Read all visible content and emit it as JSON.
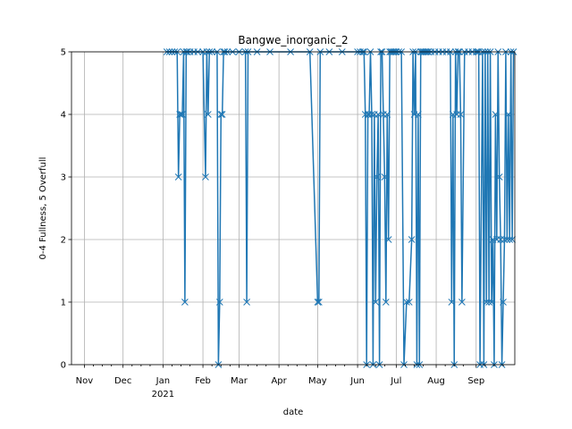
{
  "chart_data": {
    "type": "line",
    "title": "Bangwe_inorganic_2",
    "xlabel": "date",
    "ylabel": "0-4 Fullness, 5 Overfull",
    "ylim": [
      0,
      5
    ],
    "xlim": [
      "2020-10-22",
      "2021-10-01"
    ],
    "yticks": [
      0,
      1,
      2,
      3,
      4,
      5
    ],
    "xticks": [
      {
        "date": "2020-11-01",
        "label": "Nov"
      },
      {
        "date": "2020-12-01",
        "label": "Dec"
      },
      {
        "date": "2021-01-01",
        "label": "Jan",
        "sublabel": "2021"
      },
      {
        "date": "2021-02-01",
        "label": "Feb"
      },
      {
        "date": "2021-03-01",
        "label": "Mar"
      },
      {
        "date": "2021-04-01",
        "label": "Apr"
      },
      {
        "date": "2021-05-01",
        "label": "May"
      },
      {
        "date": "2021-06-01",
        "label": "Jun"
      },
      {
        "date": "2021-07-01",
        "label": "Jul"
      },
      {
        "date": "2021-08-01",
        "label": "Aug"
      },
      {
        "date": "2021-09-01",
        "label": "Sep"
      }
    ],
    "grid": true,
    "marker": "x",
    "color": "#1f77b4",
    "series": [
      {
        "x": [
          "2021-01-04",
          "2021-01-06",
          "2021-01-08",
          "2021-01-10",
          "2021-01-12",
          "2021-01-13",
          "2021-01-14",
          "2021-01-15",
          "2021-01-16",
          "2021-01-17",
          "2021-01-18",
          "2021-01-19",
          "2021-01-20",
          "2021-01-22",
          "2021-01-25",
          "2021-01-28",
          "2021-02-01",
          "2021-02-03",
          "2021-02-04",
          "2021-02-05",
          "2021-02-06",
          "2021-02-08",
          "2021-02-12",
          "2021-02-13",
          "2021-02-14",
          "2021-02-15",
          "2021-02-16",
          "2021-02-17",
          "2021-02-18",
          "2021-02-20",
          "2021-02-24",
          "2021-03-01",
          "2021-03-06",
          "2021-03-07",
          "2021-03-08",
          "2021-03-15",
          "2021-03-25",
          "2021-04-10",
          "2021-04-25",
          "2021-05-01",
          "2021-05-02",
          "2021-05-03",
          "2021-05-10",
          "2021-05-20",
          "2021-06-01",
          "2021-06-03",
          "2021-06-05",
          "2021-06-06",
          "2021-06-07",
          "2021-06-08",
          "2021-06-09",
          "2021-06-10",
          "2021-06-11",
          "2021-06-12",
          "2021-06-13",
          "2021-06-14",
          "2021-06-15",
          "2021-06-16",
          "2021-06-17",
          "2021-06-18",
          "2021-06-19",
          "2021-06-20",
          "2021-06-21",
          "2021-06-22",
          "2021-06-23",
          "2021-06-24",
          "2021-06-25",
          "2021-06-26",
          "2021-06-27",
          "2021-06-28",
          "2021-06-29",
          "2021-06-30",
          "2021-07-01",
          "2021-07-03",
          "2021-07-05",
          "2021-07-07",
          "2021-07-09",
          "2021-07-11",
          "2021-07-13",
          "2021-07-14",
          "2021-07-15",
          "2021-07-16",
          "2021-07-17",
          "2021-07-18",
          "2021-07-19",
          "2021-07-20",
          "2021-07-21",
          "2021-07-22",
          "2021-07-23",
          "2021-07-24",
          "2021-07-25",
          "2021-07-26",
          "2021-07-28",
          "2021-07-31",
          "2021-08-03",
          "2021-08-06",
          "2021-08-09",
          "2021-08-12",
          "2021-08-13",
          "2021-08-14",
          "2021-08-15",
          "2021-08-16",
          "2021-08-17",
          "2021-08-18",
          "2021-08-19",
          "2021-08-20",
          "2021-08-21",
          "2021-08-23",
          "2021-08-26",
          "2021-08-29",
          "2021-09-01",
          "2021-09-02",
          "2021-09-03",
          "2021-09-04",
          "2021-09-06",
          "2021-09-07",
          "2021-09-08",
          "2021-09-09",
          "2021-09-10",
          "2021-09-11",
          "2021-09-12",
          "2021-09-13",
          "2021-09-14",
          "2021-09-15",
          "2021-09-16",
          "2021-09-17",
          "2021-09-18",
          "2021-09-19",
          "2021-09-20",
          "2021-09-21",
          "2021-09-22",
          "2021-09-23",
          "2021-09-24",
          "2021-09-25",
          "2021-09-26",
          "2021-09-27",
          "2021-09-28",
          "2021-09-29",
          "2021-09-30"
        ],
        "y": [
          5,
          5,
          5,
          5,
          5,
          3,
          4,
          4,
          4,
          5,
          1,
          5,
          5,
          5,
          5,
          5,
          5,
          3,
          5,
          4,
          5,
          5,
          5,
          0,
          1,
          4,
          4,
          5,
          5,
          5,
          5,
          5,
          5,
          1,
          5,
          5,
          5,
          5,
          5,
          1,
          1,
          5,
          5,
          5,
          5,
          5,
          5,
          5,
          4,
          0,
          4,
          4,
          5,
          4,
          0,
          4,
          1,
          3,
          4,
          0,
          5,
          5,
          4,
          3,
          1,
          4,
          2,
          5,
          5,
          5,
          5,
          5,
          5,
          5,
          5,
          0,
          1,
          1,
          2,
          5,
          4,
          5,
          0,
          4,
          0,
          5,
          5,
          5,
          5,
          5,
          5,
          5,
          5,
          5,
          5,
          5,
          5,
          5,
          1,
          4,
          0,
          5,
          4,
          5,
          5,
          4,
          1,
          5,
          5,
          5,
          5,
          5,
          5,
          0,
          5,
          0,
          5,
          1,
          5,
          1,
          5,
          1,
          2,
          0,
          4,
          2,
          5,
          3,
          2,
          0,
          1,
          2,
          5,
          2,
          4,
          2,
          5,
          2,
          5
        ]
      }
    ]
  }
}
